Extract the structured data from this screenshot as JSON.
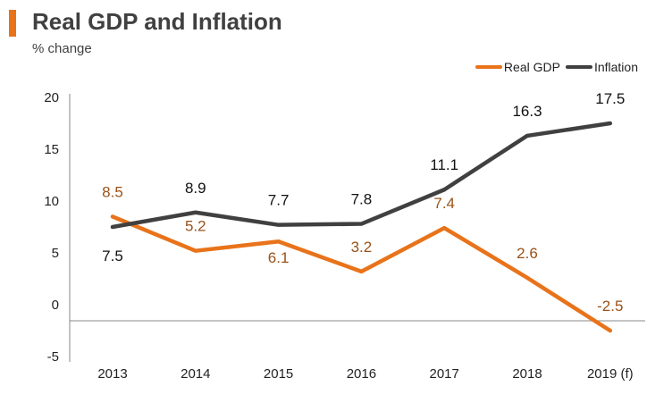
{
  "header": {
    "title": "Real GDP and Inflation",
    "subtitle": "% change"
  },
  "colors": {
    "accent": "#e8731a",
    "real_gdp": "#e8731a",
    "real_gdp_label": "#9a5218",
    "inflation": "#404040",
    "inflation_label": "#111111",
    "axis": "#888888"
  },
  "chart_data": {
    "type": "line",
    "title": "Real GDP and Inflation",
    "subtitle": "% change",
    "xlabel": "",
    "ylabel": "% change",
    "categories": [
      "2013",
      "2014",
      "2015",
      "2016",
      "2017",
      "2018",
      "2019 (f)"
    ],
    "ylim": [
      -5,
      20
    ],
    "yticks": [
      -5,
      0,
      5,
      10,
      15,
      20
    ],
    "grid": false,
    "legend_position": "top-right",
    "series": [
      {
        "name": "Real GDP",
        "values": [
          8.5,
          5.2,
          6.1,
          3.2,
          7.4,
          2.6,
          -2.5
        ],
        "labels": [
          "8.5",
          "5.2",
          "6.1",
          "3.2",
          "7.4",
          "2.6",
          "-2.5"
        ]
      },
      {
        "name": "Inflation",
        "values": [
          7.5,
          8.9,
          7.7,
          7.8,
          11.1,
          16.3,
          17.5
        ],
        "labels": [
          "7.5",
          "8.9",
          "7.7",
          "7.8",
          "11.1",
          "16.3",
          "17.5"
        ]
      }
    ]
  }
}
